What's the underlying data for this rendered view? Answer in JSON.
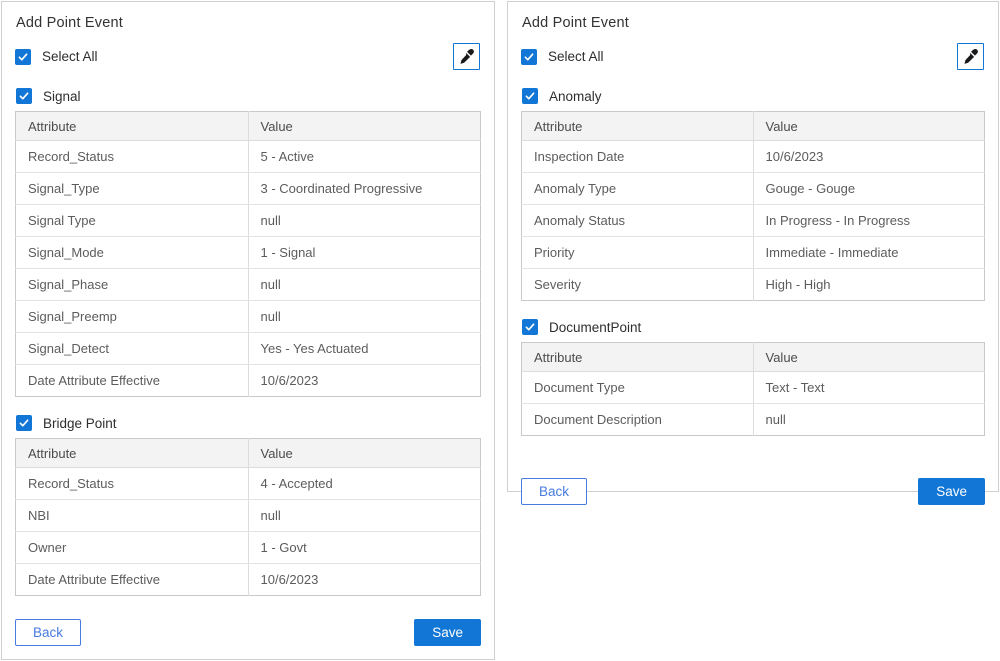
{
  "colors": {
    "primary_blue": "#1176d5",
    "back_button_blue": "#477be0",
    "table_header_bg": "#f3f3f3"
  },
  "icons": {
    "tool_button": "eyedropper",
    "checkbox_glyph": "check"
  },
  "panels": [
    {
      "title": "Add Point Event",
      "select_all_label": "Select All",
      "select_all_checked": true,
      "back_label": "Back",
      "save_label": "Save",
      "groups": [
        {
          "label": "Signal",
          "checked": true,
          "columns": [
            "Attribute",
            "Value"
          ],
          "rows": [
            [
              "Record_Status",
              "5 - Active"
            ],
            [
              "Signal_Type",
              "3 - Coordinated Progressive"
            ],
            [
              "Signal Type",
              "null"
            ],
            [
              "Signal_Mode",
              "1 - Signal"
            ],
            [
              "Signal_Phase",
              "null"
            ],
            [
              "Signal_Preemp",
              "null"
            ],
            [
              "Signal_Detect",
              "Yes - Yes Actuated"
            ],
            [
              "Date Attribute Effective",
              "10/6/2023"
            ]
          ]
        },
        {
          "label": "Bridge Point",
          "checked": true,
          "columns": [
            "Attribute",
            "Value"
          ],
          "rows": [
            [
              "Record_Status",
              "4 - Accepted"
            ],
            [
              "NBI",
              "null"
            ],
            [
              "Owner",
              "1 - Govt"
            ],
            [
              "Date Attribute Effective",
              "10/6/2023"
            ]
          ]
        }
      ]
    },
    {
      "title": "Add Point Event",
      "select_all_label": "Select All",
      "select_all_checked": true,
      "back_label": "Back",
      "save_label": "Save",
      "groups": [
        {
          "label": "Anomaly",
          "checked": true,
          "columns": [
            "Attribute",
            "Value"
          ],
          "rows": [
            [
              "Inspection Date",
              "10/6/2023"
            ],
            [
              "Anomaly Type",
              "Gouge - Gouge"
            ],
            [
              "Anomaly Status",
              "In Progress - In Progress"
            ],
            [
              "Priority",
              "Immediate - Immediate"
            ],
            [
              "Severity",
              "High - High"
            ]
          ]
        },
        {
          "label": "DocumentPoint",
          "checked": true,
          "columns": [
            "Attribute",
            "Value"
          ],
          "rows": [
            [
              "Document Type",
              "Text - Text"
            ],
            [
              "Document Description",
              "null"
            ]
          ]
        }
      ]
    }
  ]
}
